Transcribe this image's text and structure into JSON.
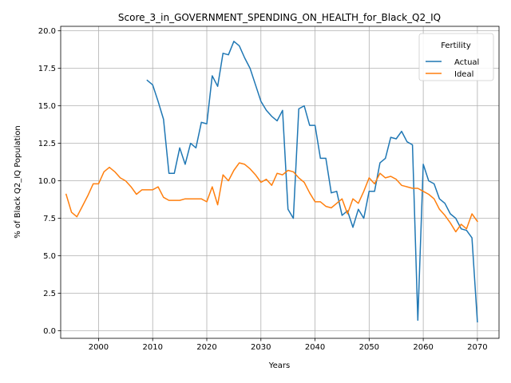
{
  "chart_data": {
    "type": "line",
    "title": "Score_3_in_GOVERNMENT_SPENDING_ON_HEALTH_for_Black_Q2_IQ",
    "xlabel": "Years",
    "ylabel": "% of Black Q2_IQ Population",
    "xlim": [
      1993,
      2074
    ],
    "ylim": [
      -0.5,
      20.3
    ],
    "xticks": [
      2000,
      2010,
      2020,
      2030,
      2040,
      2050,
      2060,
      2070
    ],
    "yticks": [
      0.0,
      2.5,
      5.0,
      7.5,
      10.0,
      12.5,
      15.0,
      17.5,
      20.0
    ],
    "ytick_labels": [
      "0.0",
      "2.5",
      "5.0",
      "7.5",
      "10.0",
      "12.5",
      "15.0",
      "17.5",
      "20.0"
    ],
    "grid": true,
    "legend": {
      "title": "Fertility",
      "placement": "top-right"
    },
    "series": [
      {
        "name": "Actual",
        "color": "#1f77b4",
        "x": [
          2009,
          2010,
          2011,
          2012,
          2013,
          2014,
          2015,
          2016,
          2017,
          2018,
          2019,
          2020,
          2021,
          2022,
          2023,
          2024,
          2025,
          2026,
          2027,
          2028,
          2029,
          2030,
          2031,
          2032,
          2033,
          2034,
          2035,
          2036,
          2037,
          2038,
          2039,
          2040,
          2041,
          2042,
          2043,
          2044,
          2045,
          2046,
          2047,
          2048,
          2049,
          2050,
          2051,
          2052,
          2053,
          2054,
          2055,
          2056,
          2057,
          2058,
          2059,
          2060,
          2061,
          2062,
          2063,
          2064,
          2065,
          2066,
          2067,
          2068,
          2069,
          2070
        ],
        "values": [
          16.7,
          16.4,
          15.3,
          14.1,
          10.5,
          10.5,
          12.2,
          11.1,
          12.5,
          12.2,
          13.9,
          13.8,
          17.0,
          16.3,
          18.5,
          18.4,
          19.3,
          19.0,
          18.2,
          17.5,
          16.4,
          15.3,
          14.7,
          14.3,
          14.0,
          14.7,
          8.1,
          7.5,
          14.8,
          15.0,
          13.7,
          13.7,
          11.5,
          11.5,
          9.2,
          9.3,
          7.7,
          8.0,
          6.9,
          8.1,
          7.5,
          9.3,
          9.3,
          11.2,
          11.5,
          12.9,
          12.8,
          13.3,
          12.6,
          12.4,
          0.7,
          11.1,
          10.0,
          9.8,
          8.8,
          8.5,
          7.8,
          7.5,
          6.8,
          6.7,
          6.2,
          0.6
        ]
      },
      {
        "name": "Ideal",
        "color": "#ff7f0e",
        "x": [
          1994,
          1995,
          1996,
          1997,
          1998,
          1999,
          2000,
          2001,
          2002,
          2003,
          2004,
          2005,
          2006,
          2007,
          2008,
          2009,
          2010,
          2011,
          2012,
          2013,
          2014,
          2015,
          2016,
          2017,
          2018,
          2019,
          2020,
          2021,
          2022,
          2023,
          2024,
          2025,
          2026,
          2027,
          2028,
          2029,
          2030,
          2031,
          2032,
          2033,
          2034,
          2035,
          2036,
          2037,
          2038,
          2039,
          2040,
          2041,
          2042,
          2043,
          2044,
          2045,
          2046,
          2047,
          2048,
          2049,
          2050,
          2051,
          2052,
          2053,
          2054,
          2055,
          2056,
          2057,
          2058,
          2059,
          2060,
          2061,
          2062,
          2063,
          2064,
          2065,
          2066,
          2067,
          2068,
          2069,
          2070
        ],
        "values": [
          9.1,
          7.9,
          7.6,
          8.3,
          9.0,
          9.8,
          9.8,
          10.6,
          10.9,
          10.6,
          10.2,
          10.0,
          9.6,
          9.1,
          9.4,
          9.4,
          9.4,
          9.6,
          8.9,
          8.7,
          8.7,
          8.7,
          8.8,
          8.8,
          8.8,
          8.8,
          8.6,
          9.6,
          8.4,
          10.4,
          10.0,
          10.7,
          11.2,
          11.1,
          10.8,
          10.4,
          9.9,
          10.1,
          9.7,
          10.5,
          10.4,
          10.7,
          10.6,
          10.2,
          9.9,
          9.2,
          8.6,
          8.6,
          8.3,
          8.2,
          8.5,
          8.8,
          7.8,
          8.8,
          8.5,
          9.3,
          10.2,
          9.8,
          10.5,
          10.2,
          10.3,
          10.1,
          9.7,
          9.6,
          9.5,
          9.5,
          9.3,
          9.1,
          8.8,
          8.1,
          7.7,
          7.2,
          6.6,
          7.1,
          6.8,
          7.8,
          7.3
        ]
      }
    ]
  }
}
